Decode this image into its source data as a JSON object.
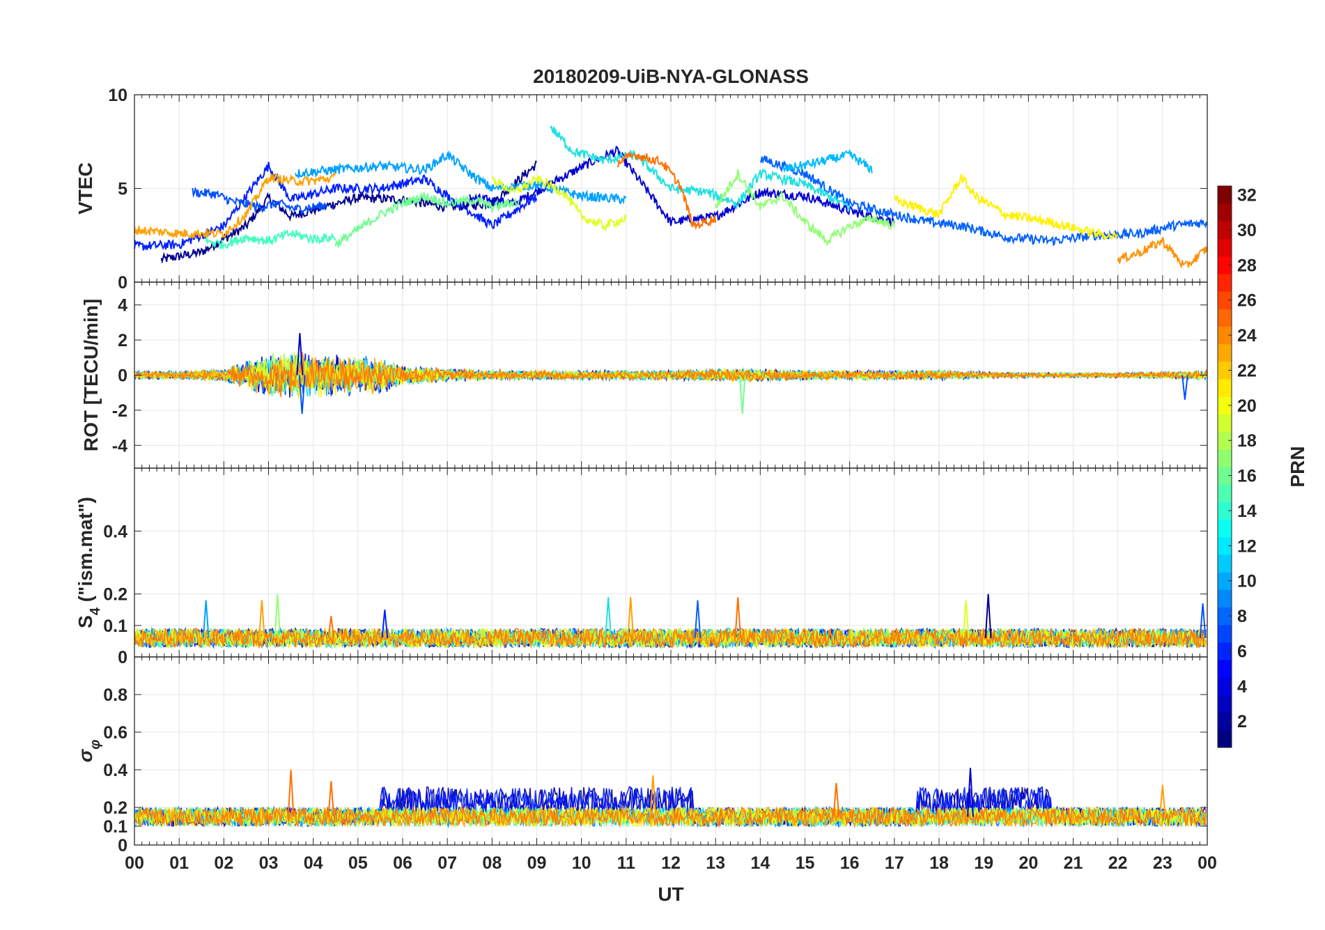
{
  "chart_data": {
    "type": "line",
    "title": "20180209-UiB-NYA-GLONASS",
    "xlabel": "UT",
    "x_tick_labels": [
      "00",
      "01",
      "02",
      "03",
      "04",
      "05",
      "06",
      "07",
      "08",
      "09",
      "10",
      "11",
      "12",
      "13",
      "14",
      "15",
      "16",
      "17",
      "18",
      "19",
      "20",
      "21",
      "22",
      "23",
      "00"
    ],
    "xlim_hours": [
      0,
      24
    ],
    "grid": true,
    "colorbar": {
      "label": "PRN",
      "range": [
        1,
        32
      ],
      "ticks": [
        "2",
        "4",
        "6",
        "8",
        "10",
        "12",
        "14",
        "16",
        "18",
        "20",
        "22",
        "24",
        "26",
        "28",
        "30",
        "32"
      ],
      "colormap": "jet"
    },
    "panels": [
      {
        "id": "vtec",
        "ylabel": "VTEC",
        "ylim": [
          0,
          10
        ],
        "y_ticks": [
          "0",
          "5",
          "10"
        ],
        "series": [
          {
            "prn": 2,
            "color": "#00008f",
            "x": [
              0.6,
              1.5,
              2.5,
              3.0,
              3.5,
              4.2,
              5.0,
              6.0,
              7.0,
              8.0,
              9.0
            ],
            "y": [
              1.2,
              1.6,
              3.0,
              4.5,
              3.5,
              4.0,
              4.5,
              4.4,
              4.0,
              4.2,
              6.3
            ]
          },
          {
            "prn": 4,
            "color": "#0000d0",
            "x": [
              7.5,
              8.5,
              9.5,
              10.3,
              10.8,
              12.0,
              13.0,
              14.0,
              15.0,
              16.0,
              17.0
            ],
            "y": [
              4.5,
              4.2,
              5.5,
              6.5,
              7.0,
              3.2,
              3.5,
              4.8,
              4.6,
              3.8,
              3.2
            ]
          },
          {
            "prn": 5,
            "color": "#0020ff",
            "x": [
              0.0,
              1.0,
              2.0,
              3.0,
              3.5,
              4.5,
              5.5,
              6.5,
              7.0,
              8.0,
              9.0
            ],
            "y": [
              1.9,
              2.0,
              3.0,
              6.2,
              4.4,
              5.0,
              5.0,
              5.5,
              4.6,
              3.0,
              4.6
            ]
          },
          {
            "prn": 7,
            "color": "#0050ff",
            "x": [
              1.3,
              1.8,
              2.2,
              2.8,
              3.2,
              3.6,
              4.0,
              4.3
            ],
            "y": [
              4.8,
              4.7,
              4.3,
              4.0,
              4.2,
              3.9,
              4.0,
              4.1
            ]
          },
          {
            "prn": 8,
            "color": "#0060ff",
            "x": [
              14.0,
              15.0,
              16.0,
              17.0,
              17.8,
              18.5,
              19.5,
              20.5,
              21.5,
              22.5,
              23.2,
              24.0
            ],
            "y": [
              6.6,
              5.8,
              4.2,
              3.6,
              3.2,
              3.0,
              2.4,
              2.2,
              2.5,
              2.6,
              3.0,
              3.2
            ]
          },
          {
            "prn": 10,
            "color": "#00a0ff",
            "x": [
              3.6,
              4.5,
              5.5,
              6.5,
              7.0,
              7.5,
              8.0,
              9.0,
              10.0,
              11.0
            ],
            "y": [
              5.8,
              6.0,
              6.2,
              6.0,
              6.8,
              5.8,
              5.0,
              5.2,
              4.6,
              4.4
            ]
          },
          {
            "prn": 11,
            "color": "#00b8ff",
            "x": [
              14.5,
              15.3,
              16.0,
              16.5
            ],
            "y": [
              6.0,
              6.4,
              6.8,
              6.0
            ]
          },
          {
            "prn": 13,
            "color": "#20e0e0",
            "x": [
              9.3,
              9.8,
              10.5,
              11.2,
              12.0,
              12.8,
              13.5,
              14.0,
              15.0,
              16.0
            ],
            "y": [
              8.3,
              7.0,
              6.5,
              6.8,
              5.0,
              4.8,
              4.2,
              5.8,
              5.2,
              4.0
            ]
          },
          {
            "prn": 14,
            "color": "#40ffc0",
            "x": [
              1.6,
              2.0,
              2.5,
              3.0,
              3.5,
              4.0,
              4.5
            ],
            "y": [
              2.2,
              2.0,
              2.4,
              2.2,
              2.6,
              2.3,
              2.4
            ]
          },
          {
            "prn": 15,
            "color": "#70ff90",
            "x": [
              4.5,
              5.0,
              5.5,
              6.0,
              6.5,
              7.0,
              7.6,
              8.0,
              8.6
            ],
            "y": [
              2.0,
              2.8,
              3.6,
              4.2,
              4.6,
              4.2,
              4.4,
              4.0,
              4.3
            ]
          },
          {
            "prn": 16,
            "color": "#90ff70",
            "x": [
              13.0,
              13.5,
              14.0,
              14.5,
              15.0,
              15.5,
              16.0,
              16.5,
              17.0
            ],
            "y": [
              4.0,
              5.8,
              4.0,
              4.6,
              3.2,
              2.2,
              3.0,
              3.4,
              3.0
            ]
          },
          {
            "prn": 19,
            "color": "#e0ff20",
            "x": [
              8.0,
              8.5,
              9.0,
              9.6,
              10.0,
              10.5,
              11.0
            ],
            "y": [
              5.5,
              4.8,
              5.5,
              4.8,
              3.5,
              3.0,
              3.4
            ]
          },
          {
            "prn": 20,
            "color": "#fff000",
            "x": [
              17.0,
              17.5,
              18.0,
              18.5,
              18.8,
              19.5,
              20.5,
              21.5,
              22.0
            ],
            "y": [
              4.4,
              4.0,
              3.6,
              5.6,
              4.6,
              3.6,
              3.2,
              2.6,
              2.4
            ]
          },
          {
            "prn": 22,
            "color": "#ffa000",
            "x": [
              0.0,
              1.0,
              2.0,
              2.5,
              3.0,
              3.5,
              4.0,
              4.5
            ],
            "y": [
              2.8,
              2.6,
              2.6,
              3.6,
              5.6,
              5.4,
              5.4,
              5.6
            ]
          },
          {
            "prn": 24,
            "color": "#ff7000",
            "x": [
              10.8,
              11.2,
              11.8,
              12.2,
              12.5,
              13.0
            ],
            "y": [
              6.4,
              6.8,
              6.4,
              5.2,
              3.0,
              3.4
            ]
          },
          {
            "prn": 23,
            "color": "#ff9000",
            "x": [
              22.0,
              22.5,
              23.0,
              23.5,
              24.0
            ],
            "y": [
              1.2,
              1.6,
              2.2,
              0.8,
              1.8
            ]
          }
        ]
      },
      {
        "id": "rot",
        "ylabel": "ROT [TECU/min]",
        "ylim": [
          -5.3,
          5.3
        ],
        "y_ticks": [
          "-4",
          "-2",
          "0",
          "2",
          "4"
        ],
        "envelope": {
          "x": [
            0,
            1,
            2,
            2.5,
            3,
            3.5,
            4,
            4.5,
            5,
            5.5,
            6,
            7,
            8,
            9,
            10,
            11,
            12,
            13,
            14,
            15,
            16,
            17,
            18,
            19,
            20,
            21,
            22,
            23,
            24
          ],
          "amplitude": [
            0.25,
            0.25,
            0.4,
            0.9,
            1.3,
            1.5,
            1.4,
            1.2,
            1.2,
            1.1,
            0.7,
            0.4,
            0.3,
            0.3,
            0.3,
            0.3,
            0.3,
            0.4,
            0.4,
            0.3,
            0.3,
            0.3,
            0.3,
            0.2,
            0.15,
            0.15,
            0.15,
            0.2,
            0.3
          ]
        },
        "spikes": [
          {
            "x": 3.7,
            "y": 2.4,
            "color": "#0000d0"
          },
          {
            "x": 3.75,
            "y": -2.2,
            "color": "#0050ff"
          },
          {
            "x": 13.6,
            "y": -2.2,
            "color": "#70ff90"
          },
          {
            "x": 23.5,
            "y": -1.4,
            "color": "#0050ff"
          }
        ]
      },
      {
        "id": "s4",
        "ylabel": "S4 (\"ism.mat\")",
        "ylabel_main": "S",
        "ylabel_sub": "4",
        "ylabel_rest": " (\"ism.mat\")",
        "ylim": [
          0,
          0.6
        ],
        "y_ticks": [
          "0",
          "0.1",
          "0.2",
          "0.4"
        ],
        "baseline": 0.06,
        "amplitude": 0.03,
        "spikes": [
          {
            "x": 1.6,
            "y": 0.18,
            "color": "#00a0ff"
          },
          {
            "x": 2.85,
            "y": 0.18,
            "color": "#ffa000"
          },
          {
            "x": 3.2,
            "y": 0.2,
            "color": "#90ff70"
          },
          {
            "x": 4.4,
            "y": 0.13,
            "color": "#ff7000"
          },
          {
            "x": 5.6,
            "y": 0.15,
            "color": "#0020ff"
          },
          {
            "x": 10.6,
            "y": 0.19,
            "color": "#20e0e0"
          },
          {
            "x": 11.1,
            "y": 0.19,
            "color": "#ffa000"
          },
          {
            "x": 12.6,
            "y": 0.18,
            "color": "#0060ff"
          },
          {
            "x": 13.5,
            "y": 0.19,
            "color": "#ff7000"
          },
          {
            "x": 18.6,
            "y": 0.18,
            "color": "#e0ff20"
          },
          {
            "x": 19.1,
            "y": 0.2,
            "color": "#00008f"
          },
          {
            "x": 23.9,
            "y": 0.17,
            "color": "#0050ff"
          }
        ]
      },
      {
        "id": "sigma",
        "ylabel": "σφ",
        "ylabel_main": "σ",
        "ylabel_sub": "φ",
        "ylim": [
          0,
          1.0
        ],
        "y_ticks": [
          "0",
          "0.1",
          "0.2",
          "0.4",
          "0.6",
          "0.8"
        ],
        "baseline": 0.15,
        "amplitude": 0.05,
        "dark_band": {
          "ranges": [
            [
              5.5,
              12.5
            ],
            [
              17.5,
              20.5
            ]
          ],
          "baseline": 0.23,
          "amplitude": 0.08
        },
        "spikes": [
          {
            "x": 3.5,
            "y": 0.4,
            "color": "#ff7000"
          },
          {
            "x": 4.4,
            "y": 0.34,
            "color": "#ff7000"
          },
          {
            "x": 11.6,
            "y": 0.37,
            "color": "#ffa000"
          },
          {
            "x": 15.7,
            "y": 0.33,
            "color": "#ff7000"
          },
          {
            "x": 18.7,
            "y": 0.41,
            "color": "#0000d0"
          },
          {
            "x": 23.0,
            "y": 0.32,
            "color": "#ffa000"
          }
        ]
      }
    ]
  }
}
